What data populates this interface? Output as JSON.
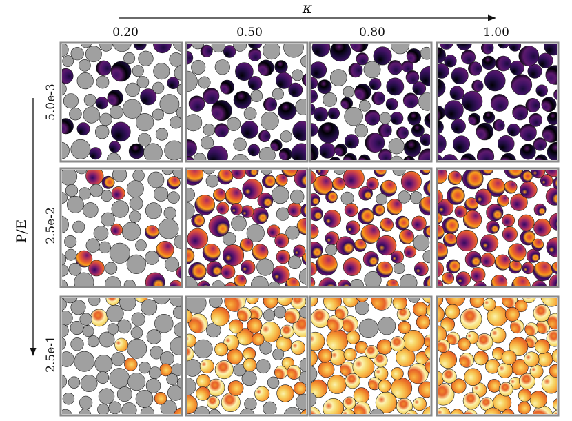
{
  "figure": {
    "x_axis": {
      "symbol": "κ",
      "direction": "increasing to the right"
    },
    "y_axis": {
      "label": "P/E",
      "direction": "increasing downward"
    },
    "columns": [
      "0.20",
      "0.50",
      "0.80",
      "1.00"
    ],
    "rows": [
      "5.0e-3",
      "2.5e-2",
      "2.5e-1"
    ],
    "legend": "none",
    "colors": {
      "inactive_particle": "#a0a0a0",
      "panel_border": "#8a8a8a",
      "row_colormaps": {
        "5.0e-3": [
          "#000004",
          "#1c0c3c",
          "#3e1163",
          "#5d1a6e"
        ],
        "2.5e-2": [
          "#320a5e",
          "#6a176e",
          "#a52c60",
          "#d44842",
          "#ed6925",
          "#f7a01c"
        ],
        "2.5e-1": [
          "#e6612a",
          "#f08a2c",
          "#f8b445",
          "#f6d86b",
          "#fcf2b0"
        ]
      }
    }
  }
}
